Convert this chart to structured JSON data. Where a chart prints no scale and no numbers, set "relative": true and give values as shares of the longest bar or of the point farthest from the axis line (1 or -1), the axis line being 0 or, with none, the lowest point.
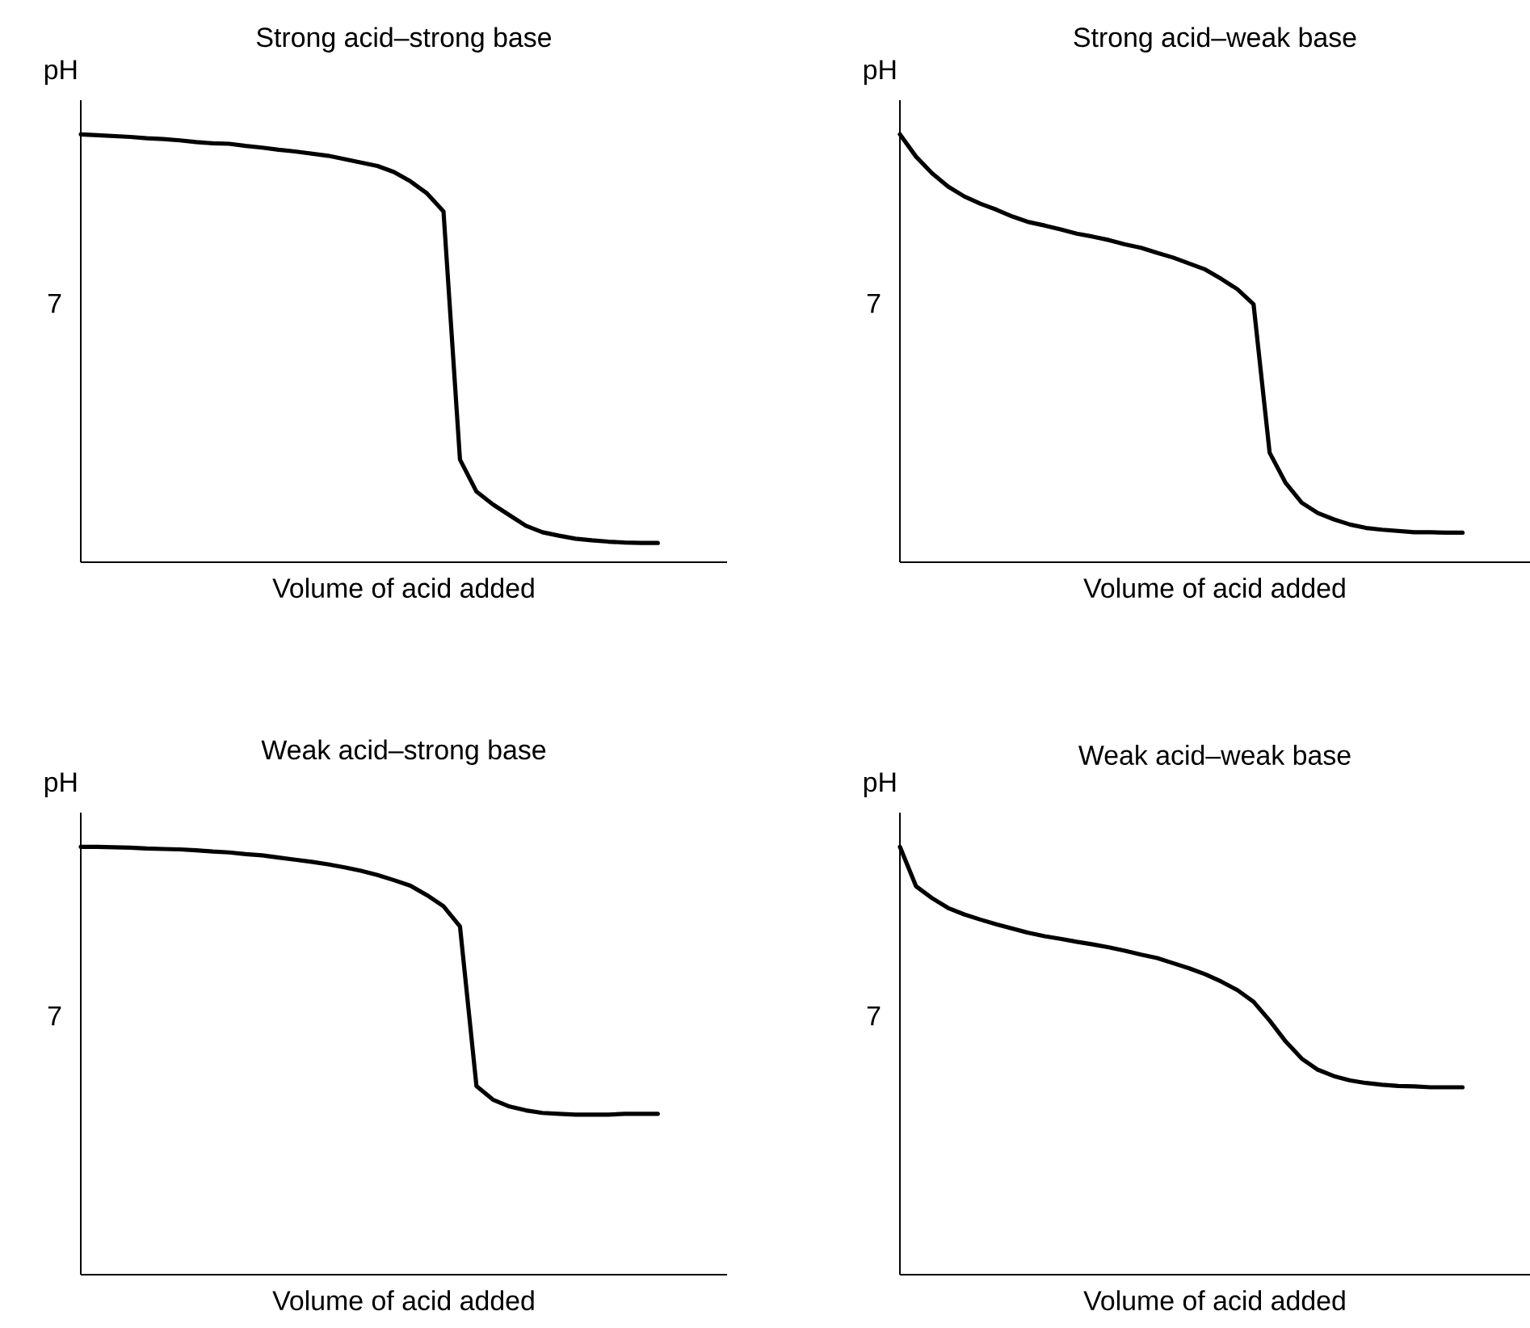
{
  "chart_data": [
    {
      "type": "line",
      "title": "Strong acid–strong base",
      "xlabel": "Volume of acid added",
      "ylabel": "pH",
      "relative": true,
      "categories": [
        null,
        null,
        null,
        null,
        null,
        null,
        null,
        null,
        null,
        null,
        null,
        null,
        null,
        null,
        null,
        null,
        null,
        null,
        null,
        null,
        null,
        null,
        null,
        null,
        null,
        null,
        null,
        null,
        null,
        null,
        null,
        null,
        null,
        null,
        null,
        null
      ],
      "series": [
        {
          "color": "#000000",
          "values": [
            1.0,
            0.998,
            0.996,
            0.994,
            0.991,
            0.989,
            0.986,
            0.982,
            0.979,
            0.978,
            0.973,
            0.969,
            0.964,
            0.96,
            0.955,
            0.95,
            0.942,
            0.934,
            0.926,
            0.912,
            0.89,
            0.862,
            0.82,
            0.24,
            0.165,
            0.135,
            0.11,
            0.085,
            0.07,
            0.062,
            0.055,
            0.051,
            0.048,
            0.046,
            0.045,
            0.045
          ]
        }
      ],
      "annotations": [
        "7"
      ]
    },
    {
      "type": "line",
      "title": "Strong acid–weak base",
      "xlabel": "Volume of acid added",
      "ylabel": "pH",
      "relative": true,
      "categories": [
        null,
        null,
        null,
        null,
        null,
        null,
        null,
        null,
        null,
        null,
        null,
        null,
        null,
        null,
        null,
        null,
        null,
        null,
        null,
        null,
        null,
        null,
        null,
        null,
        null,
        null,
        null,
        null,
        null,
        null,
        null,
        null,
        null,
        null,
        null,
        null
      ],
      "series": [
        {
          "color": "#000000",
          "values": [
            1.0,
            0.948,
            0.909,
            0.878,
            0.855,
            0.838,
            0.824,
            0.808,
            0.795,
            0.787,
            0.778,
            0.768,
            0.761,
            0.753,
            0.743,
            0.735,
            0.723,
            0.712,
            0.698,
            0.684,
            0.662,
            0.638,
            0.603,
            0.256,
            0.185,
            0.139,
            0.115,
            0.1,
            0.088,
            0.08,
            0.076,
            0.073,
            0.07,
            0.07,
            0.069,
            0.069
          ]
        }
      ],
      "annotations": [
        "7"
      ]
    },
    {
      "type": "line",
      "title": "Weak acid–strong base",
      "xlabel": "Volume of acid added",
      "ylabel": "pH",
      "relative": true,
      "categories": [
        null,
        null,
        null,
        null,
        null,
        null,
        null,
        null,
        null,
        null,
        null,
        null,
        null,
        null,
        null,
        null,
        null,
        null,
        null,
        null,
        null,
        null,
        null,
        null,
        null,
        null,
        null,
        null,
        null,
        null,
        null,
        null,
        null,
        null,
        null,
        null
      ],
      "series": [
        {
          "color": "#000000",
          "values": [
            1.0,
            1.0,
            0.999,
            0.998,
            0.996,
            0.995,
            0.994,
            0.992,
            0.989,
            0.987,
            0.983,
            0.98,
            0.975,
            0.97,
            0.965,
            0.959,
            0.952,
            0.944,
            0.934,
            0.922,
            0.909,
            0.887,
            0.861,
            0.814,
            0.441,
            0.409,
            0.393,
            0.384,
            0.378,
            0.376,
            0.374,
            0.374,
            0.374,
            0.376,
            0.376,
            0.376
          ]
        }
      ],
      "annotations": [
        "7"
      ]
    },
    {
      "type": "line",
      "title": "Weak acid–weak base",
      "xlabel": "Volume of acid added",
      "ylabel": "pH",
      "relative": true,
      "categories": [
        null,
        null,
        null,
        null,
        null,
        null,
        null,
        null,
        null,
        null,
        null,
        null,
        null,
        null,
        null,
        null,
        null,
        null,
        null,
        null,
        null,
        null,
        null,
        null,
        null,
        null,
        null,
        null,
        null,
        null,
        null,
        null,
        null,
        null,
        null,
        null
      ],
      "series": [
        {
          "color": "#000000",
          "values": [
            1.0,
            0.908,
            0.88,
            0.857,
            0.842,
            0.83,
            0.819,
            0.809,
            0.799,
            0.791,
            0.785,
            0.778,
            0.772,
            0.765,
            0.757,
            0.748,
            0.74,
            0.728,
            0.716,
            0.702,
            0.685,
            0.665,
            0.638,
            0.594,
            0.545,
            0.505,
            0.479,
            0.464,
            0.454,
            0.448,
            0.444,
            0.441,
            0.44,
            0.438,
            0.438,
            0.438
          ]
        }
      ],
      "annotations": [
        "7"
      ]
    }
  ]
}
